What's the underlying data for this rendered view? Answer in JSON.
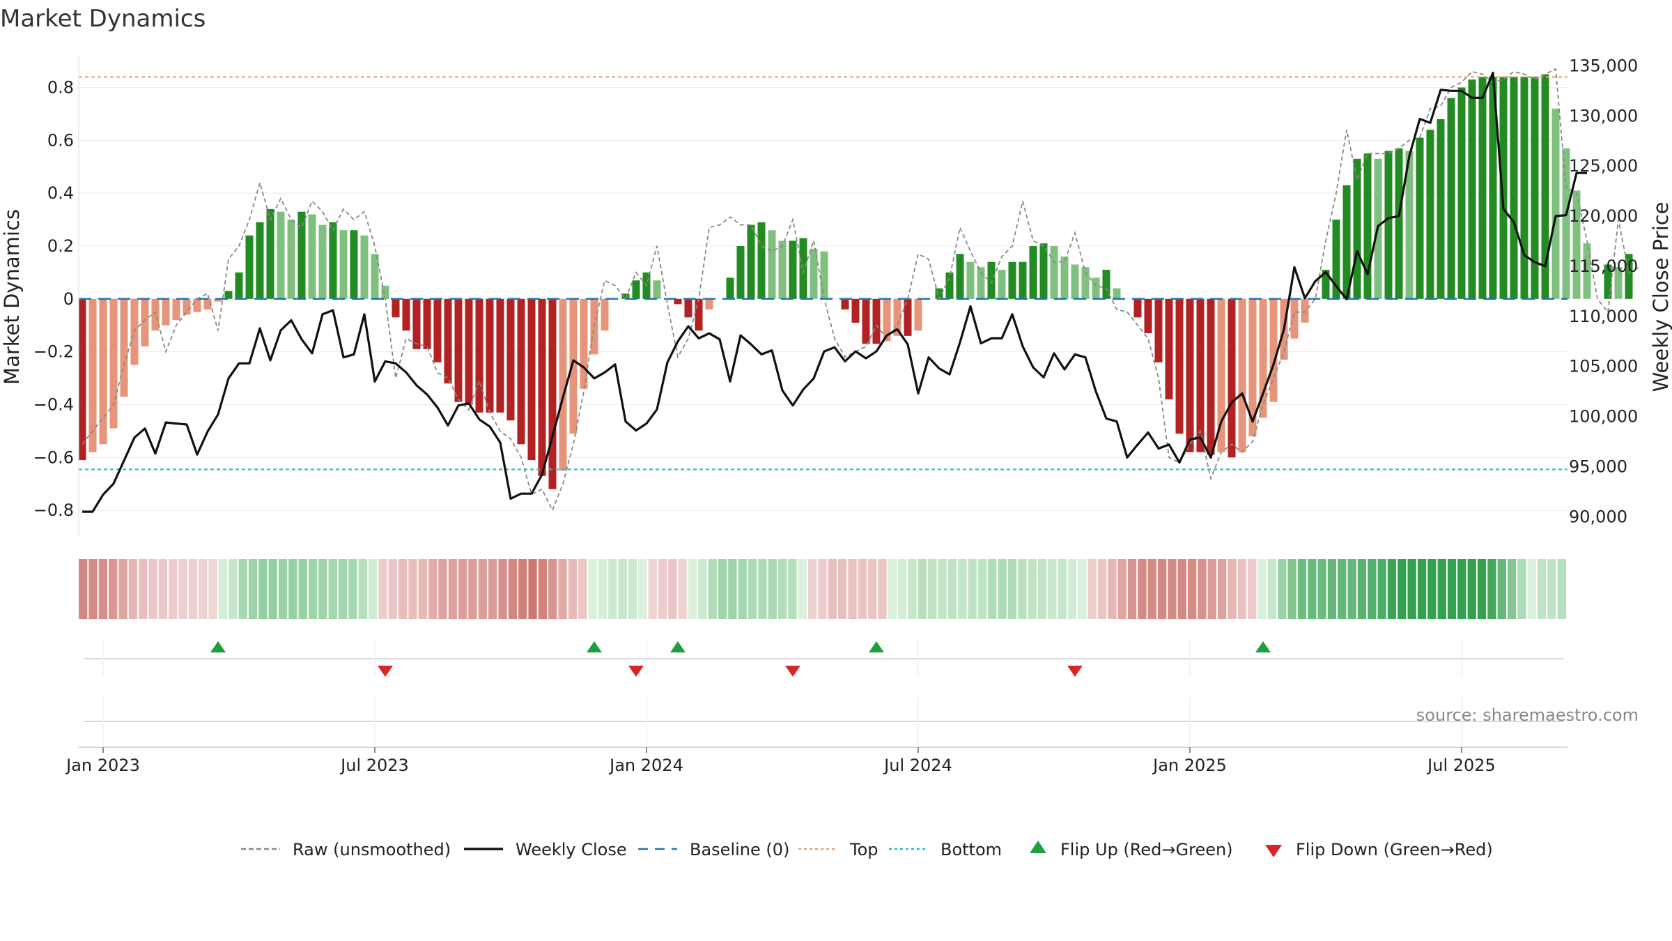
{
  "chart_data": {
    "type": "bar",
    "title": "Market Dynamics",
    "ylabel_left": "Market Dynamics",
    "ylabel_right": "Weekly Close Price",
    "source": "source: sharemaestro.com",
    "ylim_left": [
      -0.9,
      0.92
    ],
    "ylim_right": [
      88000,
      136000
    ],
    "left_ticks": [
      {
        "v": 0.8,
        "label": "0.8"
      },
      {
        "v": 0.6,
        "label": "0.6"
      },
      {
        "v": 0.4,
        "label": "0.4"
      },
      {
        "v": 0.2,
        "label": "0.2"
      },
      {
        "v": 0,
        "label": "0"
      },
      {
        "v": -0.2,
        "label": "−0.2"
      },
      {
        "v": -0.4,
        "label": "−0.4"
      },
      {
        "v": -0.6,
        "label": "−0.6"
      },
      {
        "v": -0.8,
        "label": "−0.8"
      }
    ],
    "right_ticks": [
      {
        "v": 135000,
        "label": "135,000"
      },
      {
        "v": 130000,
        "label": "130,000"
      },
      {
        "v": 125000,
        "label": "125,000"
      },
      {
        "v": 120000,
        "label": "120,000"
      },
      {
        "v": 115000,
        "label": "115,000"
      },
      {
        "v": 110000,
        "label": "110,000"
      },
      {
        "v": 105000,
        "label": "105,000"
      },
      {
        "v": 100000,
        "label": "100,000"
      },
      {
        "v": 95000,
        "label": "95,000"
      },
      {
        "v": 90000,
        "label": "90,000"
      }
    ],
    "x_ticks": [
      "Jan 2023",
      "Jul 2023",
      "Jan 2024",
      "Jul 2024",
      "Jan 2025",
      "Jul 2025"
    ],
    "x_tick_weeks": [
      0,
      26,
      52,
      78,
      104,
      130
    ],
    "first_week_offset": -2,
    "top_level": 0.84,
    "bottom_level": -0.645,
    "series": [
      {
        "name": "Market Dynamics",
        "kind": "bar",
        "values": [
          -0.61,
          -0.58,
          -0.55,
          -0.49,
          -0.37,
          -0.25,
          -0.18,
          -0.12,
          -0.1,
          -0.08,
          -0.06,
          -0.05,
          -0.04,
          -0.01,
          0.03,
          0.1,
          0.24,
          0.29,
          0.34,
          0.33,
          0.3,
          0.33,
          0.32,
          0.28,
          0.29,
          0.26,
          0.26,
          0.24,
          0.17,
          0.05,
          -0.07,
          -0.12,
          -0.19,
          -0.19,
          -0.24,
          -0.32,
          -0.39,
          -0.4,
          -0.43,
          -0.43,
          -0.43,
          -0.46,
          -0.55,
          -0.61,
          -0.67,
          -0.72,
          -0.65,
          -0.51,
          -0.34,
          -0.21,
          -0.12,
          0.0,
          0.02,
          0.07,
          0.1,
          0.07,
          0.0,
          -0.02,
          -0.07,
          -0.12,
          -0.04,
          0.0,
          0.08,
          0.2,
          0.28,
          0.29,
          0.26,
          0.22,
          0.22,
          0.23,
          0.19,
          0.18,
          0.0,
          -0.04,
          -0.09,
          -0.17,
          -0.17,
          -0.16,
          -0.14,
          -0.14,
          -0.12,
          0.0,
          0.04,
          0.1,
          0.17,
          0.14,
          0.12,
          0.14,
          0.11,
          0.14,
          0.14,
          0.2,
          0.21,
          0.2,
          0.16,
          0.13,
          0.12,
          0.08,
          0.11,
          0.04,
          0.0,
          -0.07,
          -0.13,
          -0.24,
          -0.38,
          -0.51,
          -0.58,
          -0.58,
          -0.59,
          -0.58,
          -0.6,
          -0.58,
          -0.52,
          -0.45,
          -0.39,
          -0.23,
          -0.15,
          -0.09,
          0.0,
          0.11,
          0.3,
          0.43,
          0.53,
          0.55,
          0.53,
          0.56,
          0.57,
          0.56,
          0.61,
          0.64,
          0.68,
          0.76,
          0.8,
          0.83,
          0.84,
          0.84,
          0.84,
          0.84,
          0.84,
          0.84,
          0.85,
          0.72,
          0.57,
          0.41,
          0.21,
          0.0,
          0.13,
          0.12,
          0.17
        ]
      },
      {
        "name": "Raw (unsmoothed)",
        "kind": "dashed-line",
        "values": [
          -0.55,
          -0.5,
          -0.45,
          -0.4,
          -0.25,
          -0.12,
          -0.08,
          -0.05,
          -0.2,
          -0.1,
          -0.05,
          0.0,
          0.02,
          -0.12,
          0.15,
          0.2,
          0.3,
          0.44,
          0.3,
          0.38,
          0.3,
          0.27,
          0.37,
          0.33,
          0.26,
          0.34,
          0.3,
          0.33,
          0.2,
          0.0,
          -0.3,
          -0.15,
          -0.17,
          -0.18,
          -0.28,
          -0.3,
          -0.38,
          -0.42,
          -0.31,
          -0.43,
          -0.5,
          -0.53,
          -0.6,
          -0.74,
          -0.72,
          -0.8,
          -0.7,
          -0.55,
          -0.35,
          -0.1,
          0.07,
          0.05,
          0.0,
          0.1,
          0.05,
          0.2,
          -0.02,
          -0.22,
          -0.15,
          0.0,
          0.27,
          0.28,
          0.31,
          0.28,
          0.28,
          0.2,
          0.18,
          0.2,
          0.3,
          0.1,
          0.22,
          0.0,
          -0.15,
          -0.22,
          -0.2,
          -0.18,
          -0.1,
          -0.15,
          -0.1,
          0.0,
          0.17,
          0.15,
          0.0,
          0.08,
          0.27,
          0.18,
          0.1,
          0.06,
          0.16,
          0.2,
          0.37,
          0.22,
          0.2,
          0.14,
          0.14,
          0.25,
          0.1,
          0.05,
          0.04,
          -0.04,
          -0.05,
          -0.1,
          -0.15,
          -0.3,
          -0.6,
          -0.62,
          -0.55,
          -0.5,
          -0.68,
          -0.58,
          -0.55,
          -0.58,
          -0.54,
          -0.4,
          -0.3,
          -0.2,
          -0.05,
          -0.05,
          0.0,
          0.22,
          0.4,
          0.64,
          0.45,
          0.55,
          0.55,
          0.55,
          0.57,
          0.6,
          0.61,
          0.72,
          0.73,
          0.8,
          0.82,
          0.86,
          0.85,
          0.82,
          0.83,
          0.86,
          0.85,
          0.83,
          0.85,
          0.87,
          0.42,
          0.4,
          0.22,
          0.0,
          -0.05,
          0.3,
          0.1,
          0.12
        ]
      },
      {
        "name": "Weekly Close",
        "kind": "line",
        "values": [
          90500,
          90500,
          92200,
          93300,
          95600,
          97900,
          98800,
          96300,
          99400,
          99300,
          99200,
          96200,
          98500,
          100200,
          103800,
          105300,
          105300,
          108800,
          105600,
          108600,
          109600,
          107700,
          106300,
          110200,
          110600,
          105900,
          106200,
          110200,
          103500,
          105500,
          105300,
          104400,
          103100,
          102200,
          100900,
          99100,
          101100,
          101300,
          99700,
          99000,
          97400,
          91800,
          92300,
          92300,
          94200,
          98000,
          101900,
          105600,
          104900,
          103800,
          104400,
          105200,
          99500,
          98600,
          99300,
          100700,
          105400,
          107500,
          109000,
          107800,
          108300,
          107700,
          103500,
          108100,
          107200,
          106200,
          106600,
          102600,
          101100,
          102700,
          103800,
          106500,
          106900,
          105500,
          106500,
          105800,
          106500,
          108100,
          108700,
          107200,
          102300,
          105900,
          104800,
          104200,
          107400,
          111000,
          107300,
          107800,
          107800,
          110200,
          107000,
          104900,
          103900,
          106300,
          104700,
          106200,
          105900,
          102500,
          99800,
          99500,
          95900,
          97200,
          98400,
          96800,
          97200,
          95400,
          97700,
          97900,
          95900,
          99500,
          101400,
          102300,
          99500,
          102300,
          105200,
          108700,
          114900,
          111800,
          113500,
          114400,
          113000,
          111700,
          116500,
          114200,
          119000,
          119800,
          120000,
          126000,
          129700,
          129300,
          132600,
          132500,
          132500,
          131800,
          131800,
          134300,
          120700,
          119400,
          116100,
          115400,
          115000,
          120000,
          120100,
          124300,
          124300
        ]
      }
    ],
    "heat_strip": [
      -0.61,
      -0.58,
      -0.55,
      -0.49,
      -0.37,
      -0.25,
      -0.18,
      -0.12,
      -0.1,
      -0.08,
      -0.06,
      -0.05,
      -0.04,
      -0.01,
      0.03,
      0.1,
      0.24,
      0.29,
      0.34,
      0.33,
      0.3,
      0.33,
      0.32,
      0.28,
      0.29,
      0.26,
      0.26,
      0.24,
      0.17,
      0.05,
      -0.07,
      -0.12,
      -0.19,
      -0.19,
      -0.24,
      -0.32,
      -0.39,
      -0.4,
      -0.43,
      -0.43,
      -0.43,
      -0.46,
      -0.55,
      -0.61,
      -0.67,
      -0.72,
      -0.65,
      -0.51,
      -0.34,
      -0.21,
      -0.12,
      0.0,
      0.02,
      0.07,
      0.1,
      0.07,
      0.0,
      -0.02,
      -0.07,
      -0.12,
      -0.04,
      0.0,
      0.08,
      0.2,
      0.28,
      0.29,
      0.26,
      0.22,
      0.22,
      0.23,
      0.19,
      0.18,
      0.0,
      -0.04,
      -0.09,
      -0.17,
      -0.17,
      -0.16,
      -0.14,
      -0.14,
      -0.12,
      0.0,
      0.04,
      0.1,
      0.17,
      0.14,
      0.12,
      0.14,
      0.11,
      0.14,
      0.14,
      0.2,
      0.21,
      0.2,
      0.16,
      0.13,
      0.12,
      0.08,
      0.11,
      0.04,
      0.0,
      -0.07,
      -0.13,
      -0.24,
      -0.38,
      -0.51,
      -0.58,
      -0.58,
      -0.59,
      -0.58,
      -0.6,
      -0.58,
      -0.52,
      -0.45,
      -0.39,
      -0.23,
      -0.15,
      -0.09,
      0.0,
      0.11,
      0.3,
      0.43,
      0.53,
      0.55,
      0.53,
      0.56,
      0.57,
      0.56,
      0.61,
      0.64,
      0.68,
      0.76,
      0.8,
      0.83,
      0.84,
      0.84,
      0.84,
      0.84,
      0.84,
      0.84,
      0.85,
      0.72,
      0.57,
      0.41,
      0.21,
      0.0,
      0.13,
      0.12,
      0.17
    ],
    "flip_up_weeks": [
      11,
      47,
      55,
      74,
      111
    ],
    "flip_down_weeks": [
      27,
      51,
      66,
      93
    ],
    "legend": [
      {
        "label": "Raw (unsmoothed)",
        "symbol": "dashed",
        "color": "#888888"
      },
      {
        "label": "Weekly Close",
        "symbol": "solid",
        "color": "#111111"
      },
      {
        "label": "Baseline (0)",
        "symbol": "longdash",
        "color": "#1f77b4"
      },
      {
        "label": "Top",
        "symbol": "dotted",
        "color": "#e8a06a"
      },
      {
        "label": "Bottom",
        "symbol": "dotted",
        "color": "#17becf"
      },
      {
        "label": "Flip Up (Red→Green)",
        "symbol": "triangle-up",
        "color": "#1e9e3e"
      },
      {
        "label": "Flip Down (Green→Red)",
        "symbol": "triangle-down",
        "color": "#d62728"
      }
    ],
    "colors": {
      "pos_strong": "#228b22",
      "pos_light": "#7fc07f",
      "neg_strong": "#b22222",
      "neg_light": "#e6957a",
      "baseline": "#1f77b4",
      "top": "#e8a06a",
      "bottom": "#17becf",
      "raw": "#888888",
      "close": "#111111",
      "flip_up": "#1e9e3e",
      "flip_down": "#d62728"
    }
  }
}
